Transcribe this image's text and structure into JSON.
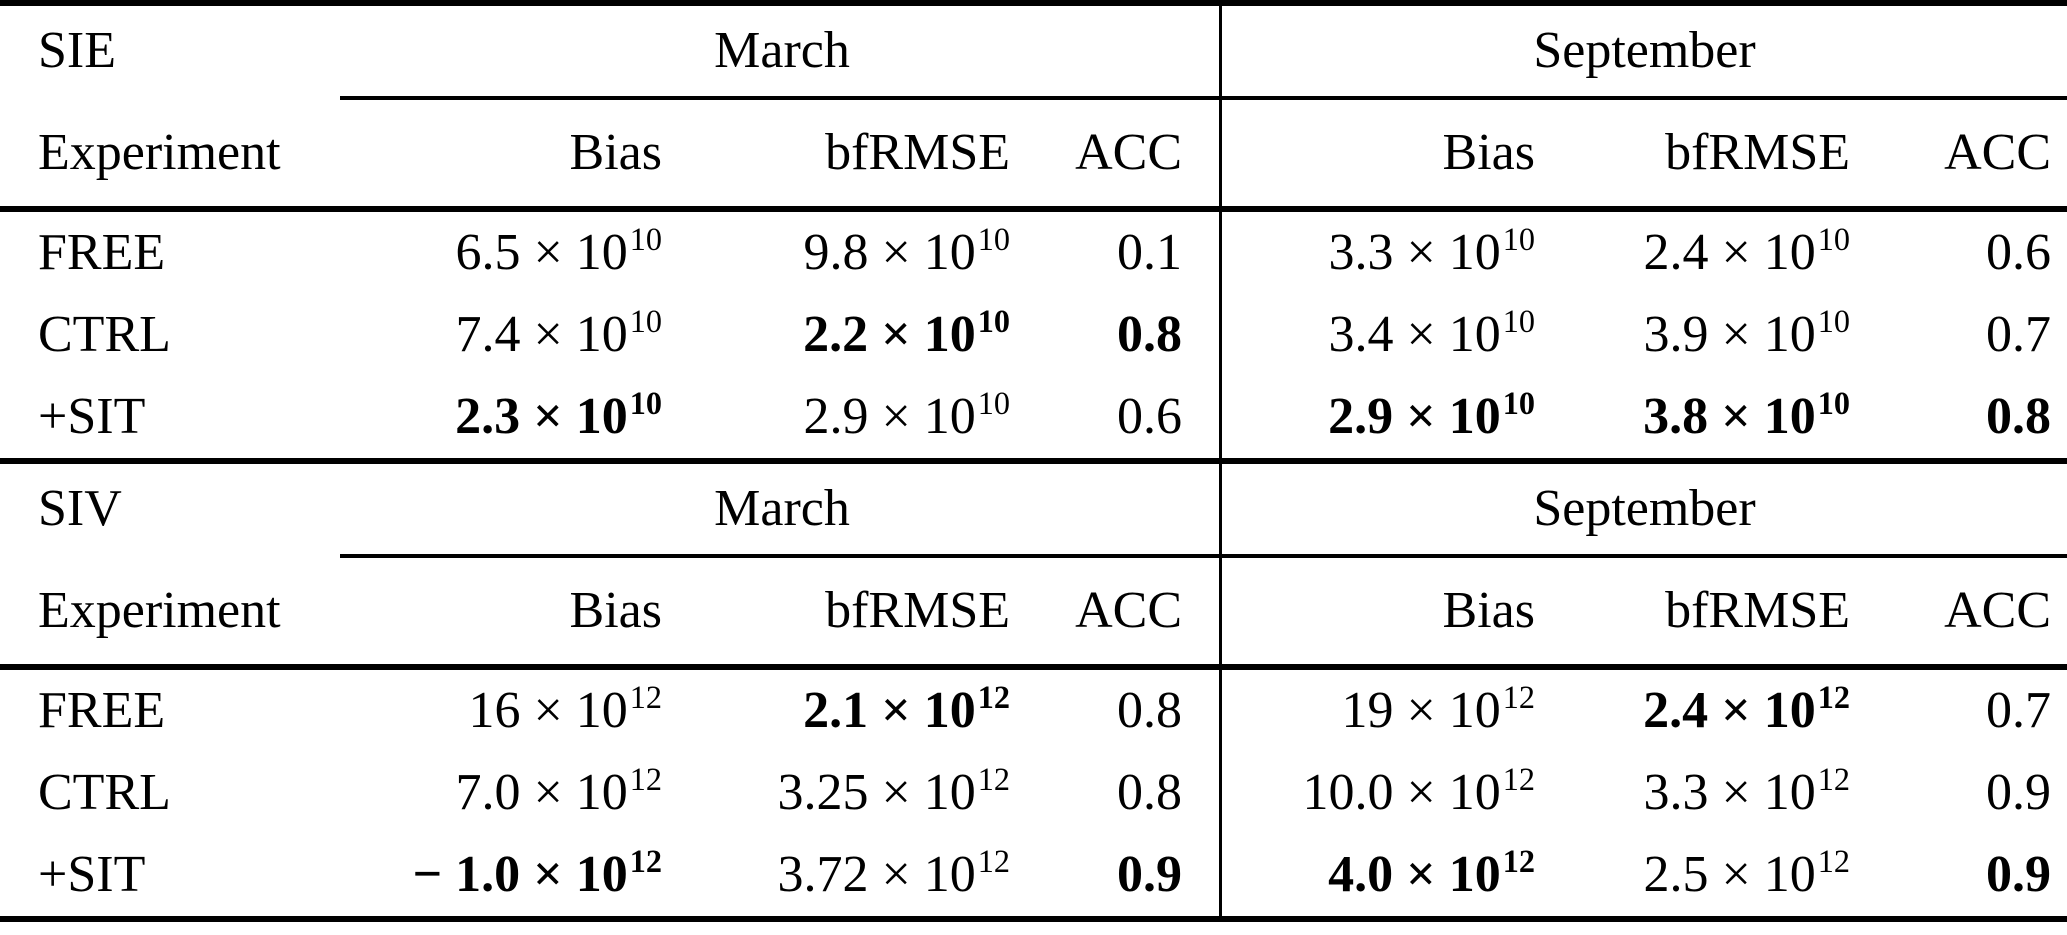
{
  "colors": {
    "background": "#ffffff",
    "text": "#000000",
    "rule": "#000000"
  },
  "sections": [
    {
      "label": "SIE",
      "groups": {
        "march": "March",
        "september": "September"
      },
      "heads": {
        "experiment": "Experiment",
        "bias": "Bias",
        "bfrmse": "bfRMSE",
        "acc": "ACC"
      },
      "rows": [
        {
          "experiment": "FREE",
          "march": {
            "bias": {
              "m": "6.5 × 10",
              "e": "10",
              "bold": false
            },
            "bfrmse": {
              "m": "9.8 × 10",
              "e": "10",
              "bold": false
            },
            "acc": {
              "text": "0.1",
              "bold": false
            }
          },
          "september": {
            "bias": {
              "m": "3.3 × 10",
              "e": "10",
              "bold": false
            },
            "bfrmse": {
              "m": "2.4 × 10",
              "e": "10",
              "bold": false
            },
            "acc": {
              "text": "0.6",
              "bold": false
            }
          }
        },
        {
          "experiment": "CTRL",
          "march": {
            "bias": {
              "m": "7.4 × 10",
              "e": "10",
              "bold": false
            },
            "bfrmse": {
              "m": "2.2 × 10",
              "e": "10",
              "bold": true
            },
            "acc": {
              "text": "0.8",
              "bold": true
            }
          },
          "september": {
            "bias": {
              "m": "3.4 × 10",
              "e": "10",
              "bold": false
            },
            "bfrmse": {
              "m": "3.9 × 10",
              "e": "10",
              "bold": false
            },
            "acc": {
              "text": "0.7",
              "bold": false
            }
          }
        },
        {
          "experiment": "+SIT",
          "march": {
            "bias": {
              "m": "2.3 × 10",
              "e": "10",
              "bold": true
            },
            "bfrmse": {
              "m": "2.9 × 10",
              "e": "10",
              "bold": false
            },
            "acc": {
              "text": "0.6",
              "bold": false
            }
          },
          "september": {
            "bias": {
              "m": "2.9 × 10",
              "e": "10",
              "bold": true
            },
            "bfrmse": {
              "m": "3.8 × 10",
              "e": "10",
              "bold": true
            },
            "acc": {
              "text": "0.8",
              "bold": true
            }
          }
        }
      ]
    },
    {
      "label": "SIV",
      "groups": {
        "march": "March",
        "september": "September"
      },
      "heads": {
        "experiment": "Experiment",
        "bias": "Bias",
        "bfrmse": "bfRMSE",
        "acc": "ACC"
      },
      "rows": [
        {
          "experiment": "FREE",
          "march": {
            "bias": {
              "m": "16 × 10",
              "e": "12",
              "bold": false
            },
            "bfrmse": {
              "m": "2.1 × 10",
              "e": "12",
              "bold": true
            },
            "acc": {
              "text": "0.8",
              "bold": false
            }
          },
          "september": {
            "bias": {
              "m": "19 × 10",
              "e": "12",
              "bold": false
            },
            "bfrmse": {
              "m": "2.4 × 10",
              "e": "12",
              "bold": true
            },
            "acc": {
              "text": "0.7",
              "bold": false
            }
          }
        },
        {
          "experiment": "CTRL",
          "march": {
            "bias": {
              "m": "7.0 × 10",
              "e": "12",
              "bold": false
            },
            "bfrmse": {
              "m": "3.25 × 10",
              "e": "12",
              "bold": false
            },
            "acc": {
              "text": "0.8",
              "bold": false
            }
          },
          "september": {
            "bias": {
              "m": "10.0 × 10",
              "e": "12",
              "bold": false
            },
            "bfrmse": {
              "m": "3.3 × 10",
              "e": "12",
              "bold": false
            },
            "acc": {
              "text": "0.9",
              "bold": false
            }
          }
        },
        {
          "experiment": "+SIT",
          "march": {
            "bias": {
              "m": "− 1.0 × 10",
              "e": "12",
              "bold": true
            },
            "bfrmse": {
              "m": "3.72 × 10",
              "e": "12",
              "bold": false
            },
            "acc": {
              "text": "0.9",
              "bold": true
            }
          },
          "september": {
            "bias": {
              "m": "4.0 × 10",
              "e": "12",
              "bold": true
            },
            "bfrmse": {
              "m": "2.5 × 10",
              "e": "12",
              "bold": false
            },
            "acc": {
              "text": "0.9",
              "bold": true
            }
          }
        }
      ]
    }
  ]
}
